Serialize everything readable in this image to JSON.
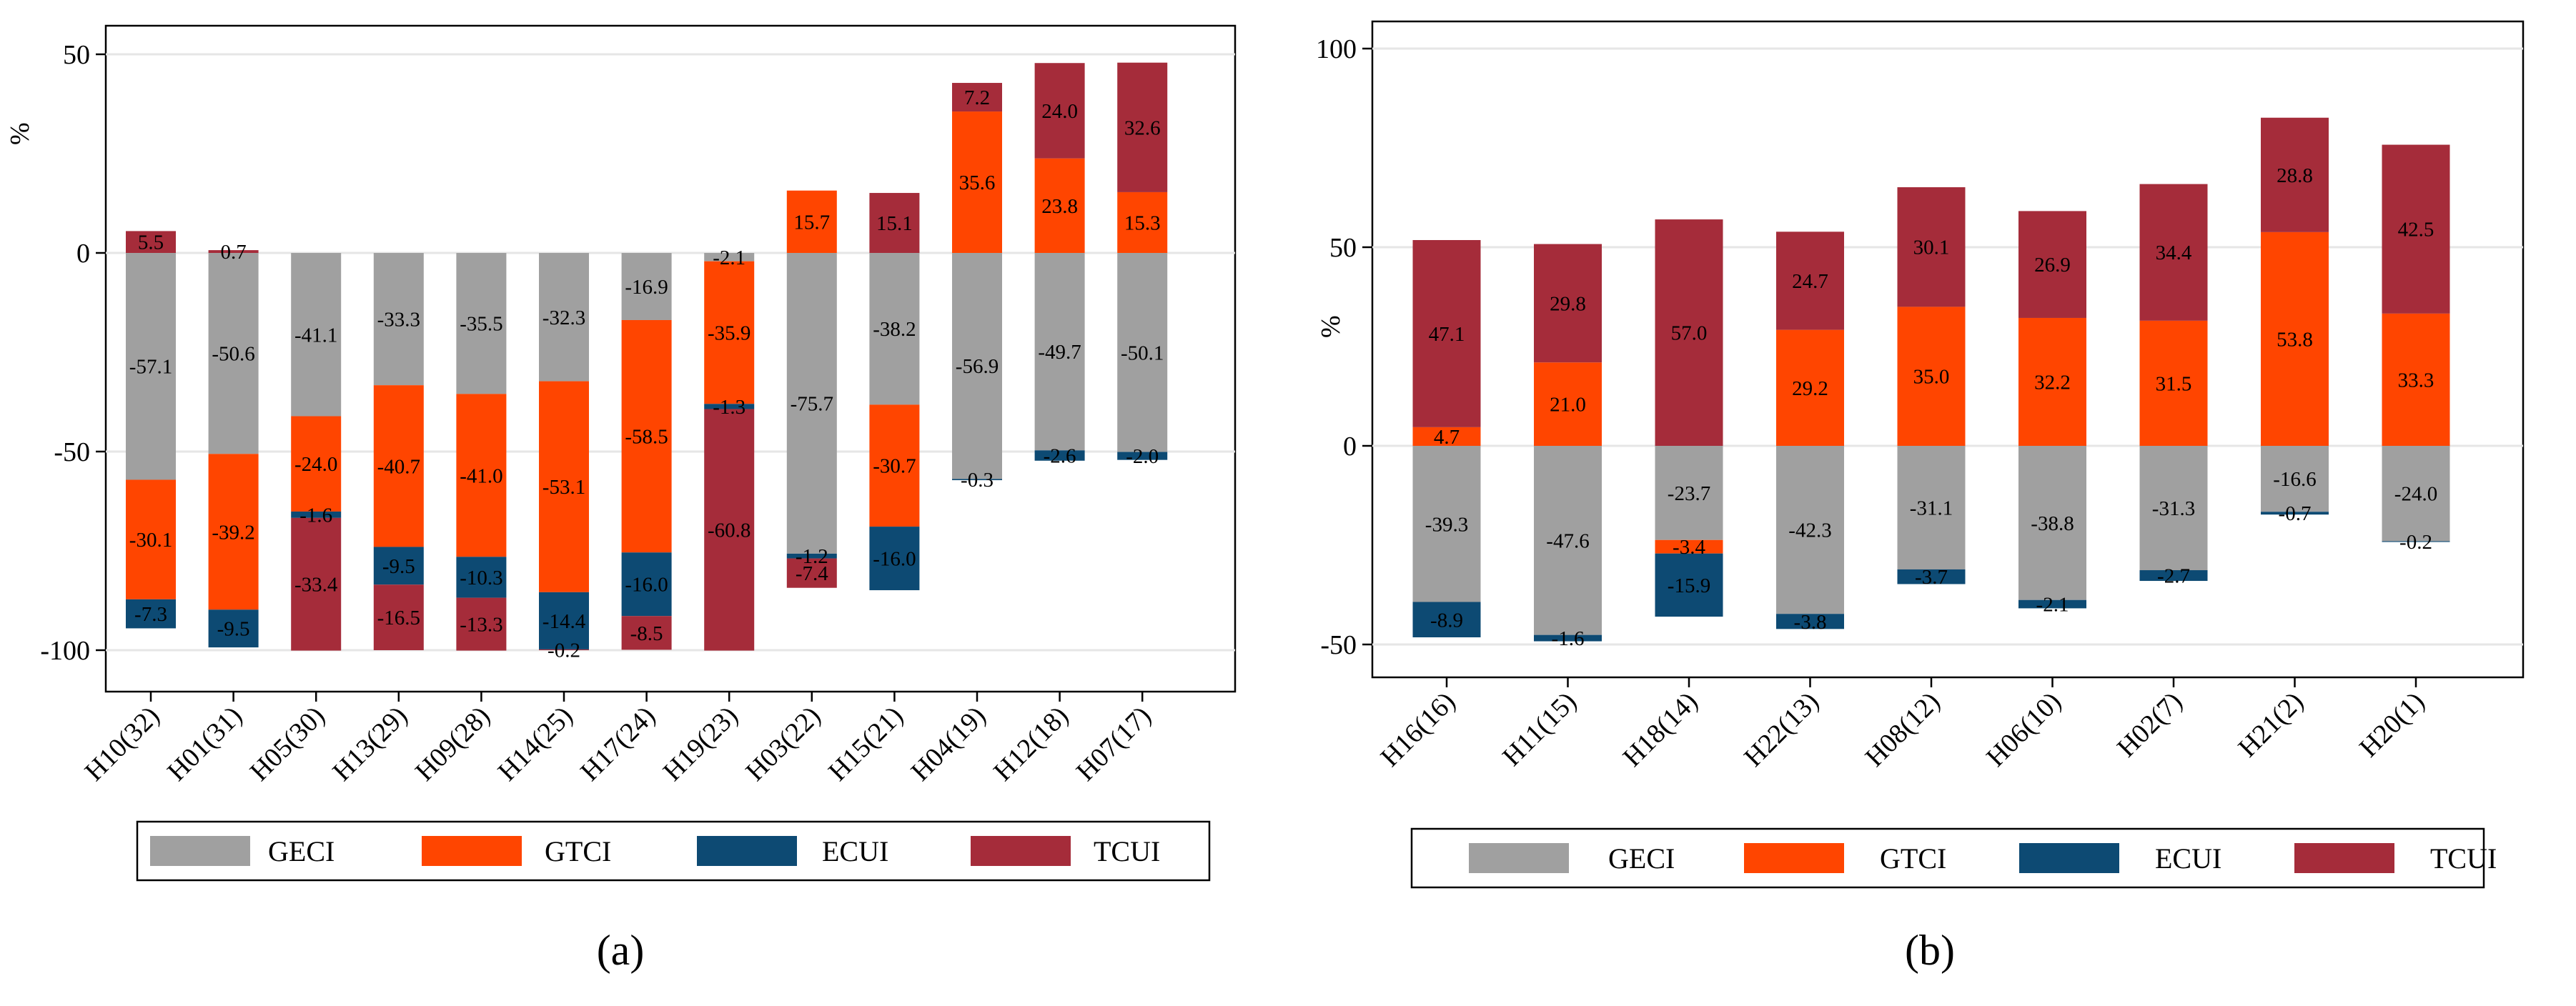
{
  "figure": {
    "panel_labels": [
      "(a)",
      "(b)"
    ],
    "y_unit": "%"
  },
  "colors": {
    "GECI": "#a0a0a0",
    "GTCI": "#ff4500",
    "ECUI": "#0d4a73",
    "TCUI": "#a52c3a"
  },
  "chart_data": [
    {
      "type": "bar",
      "stacked": true,
      "panel": "(a)",
      "ylabel": "%",
      "xlabel": "",
      "ylim": [
        -104,
        58
      ],
      "yticks": [
        50,
        0,
        -50,
        -100
      ],
      "ytick_labels": [
        "50",
        "0",
        "-50",
        "-100"
      ],
      "grid": true,
      "categories": [
        "H10(32)",
        "H01(31)",
        "H05(30)",
        "H13(29)",
        "H09(28)",
        "H14(25)",
        "H17(24)",
        "H19(23)",
        "H03(22)",
        "H15(21)",
        "H04(19)",
        "H12(18)",
        "H07(17)"
      ],
      "series": [
        {
          "name": "GECI",
          "values": [
            -57.1,
            -50.6,
            -41.1,
            -33.3,
            -35.5,
            -32.3,
            -16.9,
            -2.1,
            -75.7,
            -38.2,
            -56.9,
            -49.7,
            -50.1
          ]
        },
        {
          "name": "GTCI",
          "values": [
            -30.1,
            -39.2,
            -24.0,
            -40.7,
            -41.0,
            -53.1,
            -58.5,
            -35.9,
            15.7,
            -30.7,
            35.6,
            23.8,
            15.3
          ]
        },
        {
          "name": "ECUI",
          "values": [
            -7.3,
            -9.5,
            -1.6,
            -9.5,
            -10.3,
            -14.4,
            -16.0,
            -1.3,
            -1.2,
            -16.0,
            -0.3,
            -2.6,
            -2.0
          ]
        },
        {
          "name": "TCUI",
          "values": [
            5.5,
            0.7,
            -33.4,
            -16.5,
            -13.3,
            -0.2,
            -8.5,
            -60.8,
            -7.4,
            15.1,
            7.2,
            24.0,
            32.6
          ]
        }
      ],
      "legend": {
        "entries": [
          "GECI",
          "GTCI",
          "ECUI",
          "TCUI"
        ],
        "position": "bottom"
      }
    },
    {
      "type": "bar",
      "stacked": true,
      "panel": "(b)",
      "ylabel": "%",
      "xlabel": "",
      "ylim": [
        -57,
        103
      ],
      "yticks": [
        100,
        50,
        0,
        -50
      ],
      "ytick_labels": [
        "100",
        "50",
        "0",
        "-50"
      ],
      "grid": true,
      "categories": [
        "H16(16)",
        "H11(15)",
        "H18(14)",
        "H22(13)",
        "H08(12)",
        "H06(10)",
        "H02(7)",
        "H21(2)",
        "H20(1)"
      ],
      "series": [
        {
          "name": "GECI",
          "values": [
            -39.3,
            -47.6,
            -23.7,
            -42.3,
            -31.1,
            -38.8,
            -31.3,
            -16.6,
            -24.0
          ]
        },
        {
          "name": "GTCI",
          "values": [
            4.7,
            21.0,
            -3.4,
            29.2,
            35.0,
            32.2,
            31.5,
            53.8,
            33.3
          ]
        },
        {
          "name": "ECUI",
          "values": [
            -8.9,
            -1.6,
            -15.9,
            -3.8,
            -3.7,
            -2.1,
            -2.7,
            -0.7,
            -0.2
          ]
        },
        {
          "name": "TCUI",
          "values": [
            47.1,
            29.8,
            57.0,
            24.7,
            30.1,
            26.9,
            34.4,
            28.8,
            42.5
          ]
        }
      ],
      "legend": {
        "entries": [
          "GECI",
          "GTCI",
          "ECUI",
          "TCUI"
        ],
        "position": "bottom"
      }
    }
  ]
}
